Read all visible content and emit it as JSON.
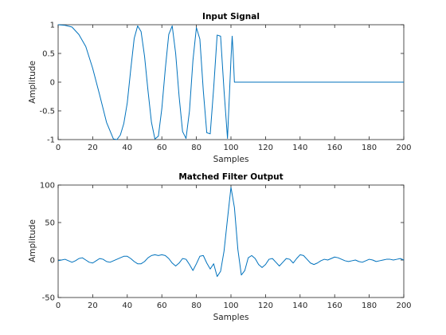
{
  "colors": {
    "line": "#0072BD",
    "axis": "#262626",
    "background": "#ffffff"
  },
  "chart_data": [
    {
      "type": "line",
      "title": "Input Signal",
      "xlabel": "Samples",
      "ylabel": "Amplitude",
      "xlim": [
        0,
        200
      ],
      "ylim": [
        -1,
        1
      ],
      "xticks": [
        0,
        20,
        40,
        60,
        80,
        100,
        120,
        140,
        160,
        180,
        200
      ],
      "yticks": [
        -1,
        -0.5,
        0,
        0.5,
        1
      ],
      "grid": false,
      "series": [
        {
          "x": [
            0,
            4,
            8,
            12,
            16,
            20,
            24,
            28,
            32,
            34,
            36,
            38,
            40,
            42,
            44,
            46,
            48,
            50,
            52,
            54,
            56,
            58,
            60,
            62,
            64,
            66,
            68,
            70,
            72,
            74,
            76,
            78,
            80,
            82,
            84,
            86,
            88,
            90,
            92,
            94,
            96,
            98,
            100,
            100.7,
            101.2,
            102,
            120,
            140,
            160,
            180,
            200
          ],
          "y": [
            1,
            0.99,
            0.96,
            0.83,
            0.62,
            0.24,
            -0.22,
            -0.7,
            -0.99,
            -1,
            -0.92,
            -0.72,
            -0.36,
            0.22,
            0.76,
            0.98,
            0.88,
            0.45,
            -0.15,
            -0.7,
            -0.99,
            -0.94,
            -0.46,
            0.23,
            0.83,
            0.98,
            0.5,
            -0.25,
            -0.86,
            -0.98,
            -0.5,
            0.38,
            0.95,
            0.75,
            -0.15,
            -0.88,
            -0.9,
            -0.1,
            0.82,
            0.8,
            -0.15,
            -0.98,
            0.4,
            0.8,
            0.55,
            0,
            0,
            0,
            0,
            0,
            0
          ]
        }
      ]
    },
    {
      "type": "line",
      "title": "Matched Filter Output",
      "xlabel": "Samples",
      "ylabel": "Amplitude",
      "xlim": [
        0,
        200
      ],
      "ylim": [
        -50,
        100
      ],
      "xticks": [
        0,
        20,
        40,
        60,
        80,
        100,
        120,
        140,
        160,
        180,
        200
      ],
      "yticks": [
        -50,
        0,
        50,
        100
      ],
      "grid": false,
      "series": [
        {
          "x": [
            0,
            2,
            4,
            6,
            8,
            10,
            12,
            14,
            16,
            18,
            20,
            22,
            24,
            26,
            28,
            30,
            32,
            34,
            36,
            38,
            40,
            42,
            44,
            46,
            48,
            50,
            52,
            54,
            56,
            58,
            60,
            62,
            64,
            66,
            68,
            70,
            72,
            74,
            76,
            78,
            80,
            82,
            84,
            86,
            88,
            90,
            92,
            94,
            96,
            98,
            100,
            102,
            104,
            106,
            108,
            110,
            112,
            114,
            116,
            118,
            120,
            122,
            124,
            126,
            128,
            130,
            132,
            134,
            136,
            138,
            140,
            142,
            144,
            146,
            148,
            150,
            152,
            154,
            156,
            158,
            160,
            162,
            164,
            166,
            168,
            170,
            172,
            174,
            176,
            178,
            180,
            182,
            184,
            186,
            188,
            190,
            192,
            194,
            196,
            198,
            200
          ],
          "y": [
            -1,
            0,
            1,
            -1,
            -3,
            -1,
            2,
            3,
            0,
            -3,
            -4,
            -1,
            2,
            1,
            -2,
            -3,
            -1,
            1,
            3,
            5,
            5,
            2,
            -2,
            -5,
            -5,
            -2,
            3,
            6,
            7,
            6,
            7,
            6,
            2,
            -4,
            -8,
            -4,
            2,
            1,
            -6,
            -14,
            -5,
            5,
            6,
            -4,
            -12,
            -5,
            -22,
            -15,
            12,
            55,
            97,
            70,
            14,
            -20,
            -14,
            3,
            6,
            2,
            -6,
            -10,
            -6,
            1,
            2,
            -3,
            -8,
            -3,
            2,
            1,
            -4,
            2,
            7,
            6,
            1,
            -4,
            -6,
            -4,
            -1,
            1,
            0,
            2,
            4,
            3,
            1,
            -1,
            -2,
            -1,
            0,
            -2,
            -3,
            -1,
            1,
            0,
            -2,
            -1,
            0,
            1,
            1,
            0,
            1,
            2,
            0
          ]
        }
      ]
    }
  ]
}
